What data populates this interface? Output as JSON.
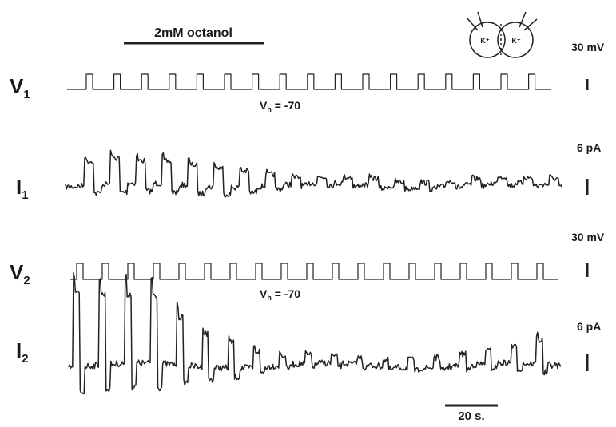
{
  "figure": {
    "treatment": "2mM octanol",
    "cell_labels": [
      "K⁺",
      "K⁺"
    ],
    "traces": [
      {
        "label": "V",
        "sub": "1",
        "scale": "30 mV"
      },
      {
        "label": "I",
        "sub": "1",
        "scale": "6 pA"
      },
      {
        "label": "V",
        "sub": "2",
        "scale": "30 mV"
      },
      {
        "label": "I",
        "sub": "2",
        "scale": "6 pA"
      }
    ],
    "holding": [
      {
        "base": "V",
        "sub": "h",
        "rest": " = -70"
      },
      {
        "base": "V",
        "sub": "h",
        "rest": " = -70"
      }
    ],
    "time_scale": "20 s."
  }
}
